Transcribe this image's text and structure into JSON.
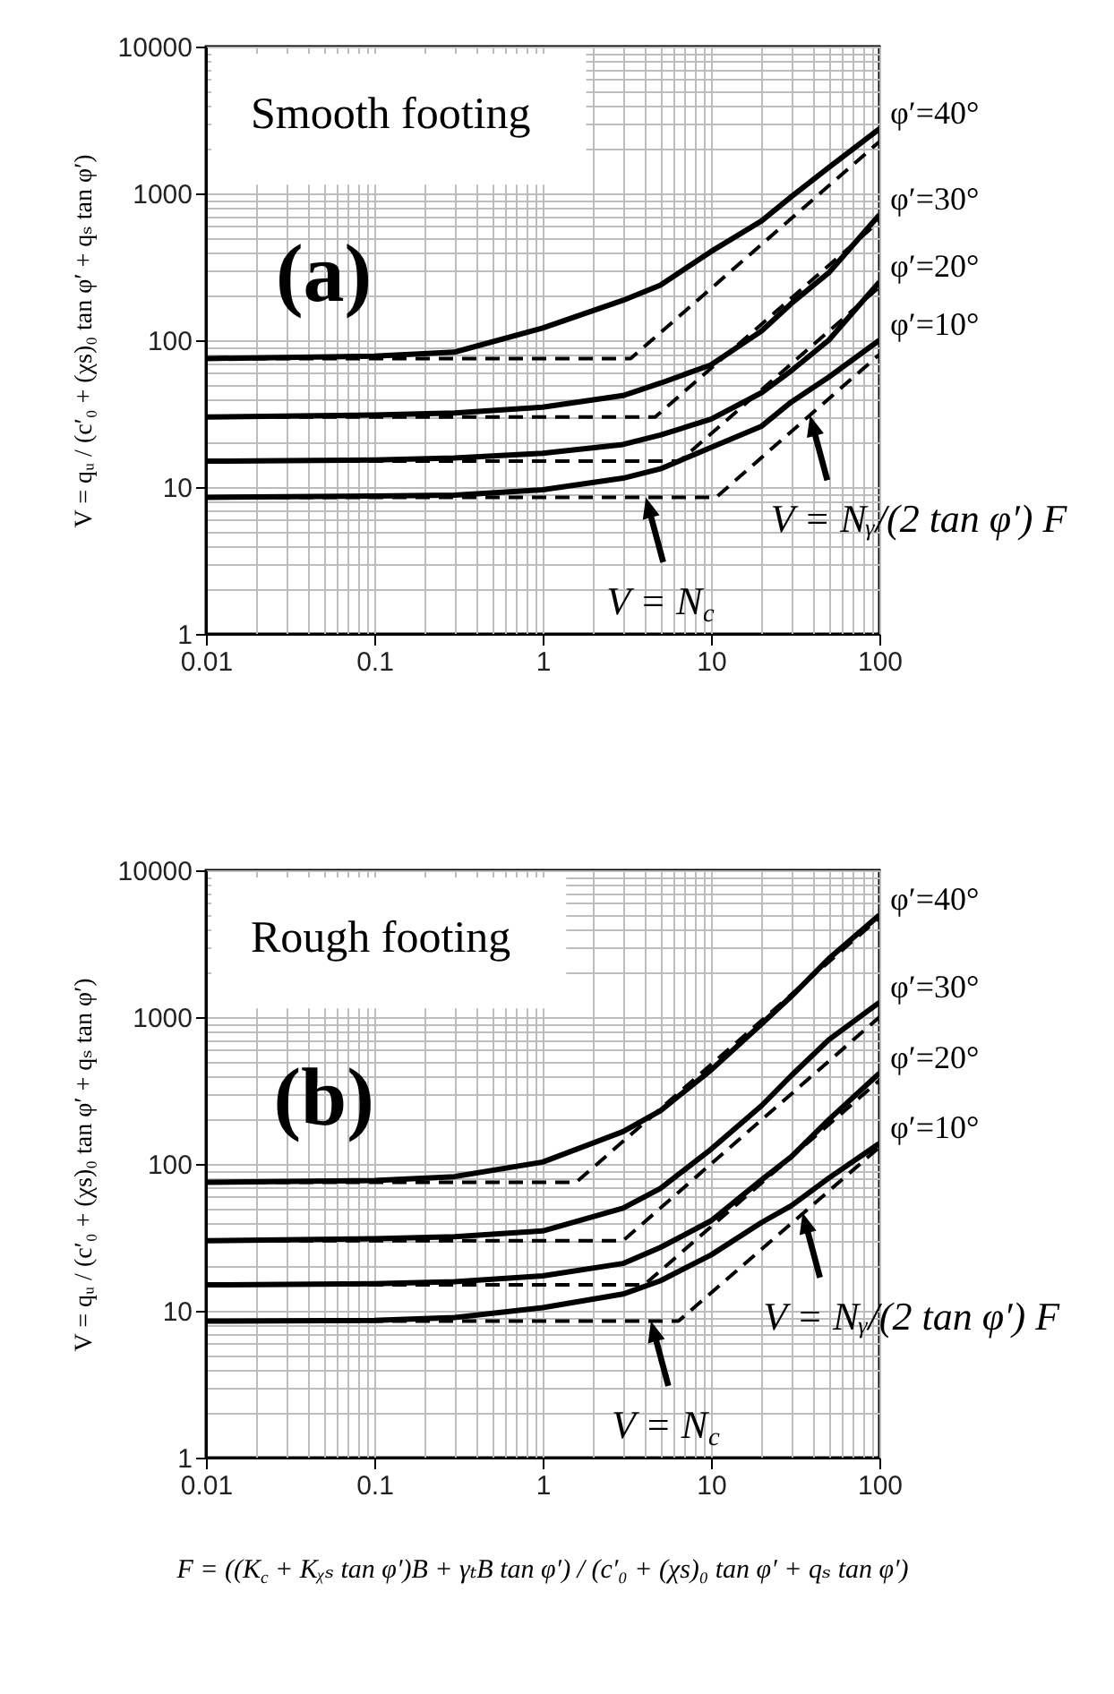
{
  "chart_data": [
    {
      "type": "line",
      "title": "Smooth footing",
      "ylabel": "V = qᵤ / (c′₀ + (χs)₀ tan φ′ + qₛ tan φ′)",
      "x": [
        0.01,
        0.1,
        0.3,
        1,
        3,
        5,
        10,
        20,
        30,
        50,
        100
      ],
      "xlim": [
        0.01,
        100
      ],
      "xticks": [
        0.01,
        0.1,
        1,
        10,
        100
      ],
      "ylim": [
        1,
        10000
      ],
      "yticks": [
        1,
        10,
        100,
        1000,
        10000
      ],
      "log": "xy",
      "grid": true,
      "annotations": [
        "(a)",
        {
          "text": "V = N$_{c}$",
          "x": 4.1,
          "y": 8.5
        },
        {
          "text": "V = Nᵧ/(2 tan φ′) F",
          "x": 38.7,
          "y": 30.7
        }
      ],
      "series": [
        {
          "name": "φ′=40°",
          "color": "#000000",
          "line_style": "solid",
          "values": [
            75,
            78,
            83,
            121,
            187,
            237,
            402,
            650,
            950,
            1500,
            2750
          ]
        },
        {
          "color": "#000000",
          "line_style": "dashed",
          "x": [
            0.01,
            3.33,
            100
          ],
          "values": [
            75,
            75,
            2250
          ]
        },
        {
          "name": "φ′=30°",
          "color": "#000000",
          "line_style": "solid",
          "values": [
            30,
            31,
            32,
            35,
            42,
            51,
            68,
            116,
            178,
            288,
            714
          ]
        },
        {
          "color": "#000000",
          "line_style": "dashed",
          "x": [
            0.01,
            4.66,
            100
          ],
          "values": [
            30,
            30,
            646
          ]
        },
        {
          "name": "φ′=20°",
          "color": "#000000",
          "line_style": "solid",
          "values": [
            15,
            15.3,
            15.8,
            17,
            19.5,
            22.6,
            29,
            44,
            62,
            100,
            249
          ]
        },
        {
          "color": "#000000",
          "line_style": "dashed",
          "x": [
            0.01,
            6.5,
            100
          ],
          "values": [
            15,
            15,
            230
          ]
        },
        {
          "name": "φ′=10°",
          "color": "#000000",
          "line_style": "solid",
          "values": [
            8.5,
            8.7,
            8.8,
            9.6,
            11.5,
            13.3,
            18.6,
            26,
            38,
            56,
            100
          ]
        },
        {
          "color": "#000000",
          "line_style": "dashed",
          "x": [
            0.01,
            10.7,
            100
          ],
          "values": [
            8.5,
            8.5,
            80
          ]
        }
      ]
    },
    {
      "type": "line",
      "title": "Rough footing",
      "ylabel": "V = qᵤ / (c′₀ + (χs)₀ tan φ′ + qₛ tan φ′)",
      "xlabel": "F = ((K$_{c}$ + Kᵪₛ tan φ′)B + γₜB tan φ′) / (c′₀ + (χs)₀ tan φ′ + qₛ tan φ′)",
      "x": [
        0.01,
        0.1,
        0.3,
        1,
        3,
        5,
        10,
        20,
        30,
        50,
        100
      ],
      "xlim": [
        0.01,
        100
      ],
      "xticks": [
        0.01,
        0.1,
        1,
        10,
        100
      ],
      "ylim": [
        1,
        10000
      ],
      "yticks": [
        1,
        10,
        100,
        1000,
        10000
      ],
      "log": "xy",
      "grid": true,
      "annotations": [
        "(b)",
        {
          "text": "V = N$_{c}$",
          "x": 4.4,
          "y": 8.5
        },
        {
          "text": "V = Nᵧ/(2 tan φ′) F",
          "x": 35,
          "y": 46.5
        }
      ],
      "series": [
        {
          "name": "φ′=40°",
          "color": "#000000",
          "line_style": "solid",
          "values": [
            75,
            77,
            82,
            103,
            166,
            230,
            436,
            900,
            1385,
            2500,
            4950
          ]
        },
        {
          "color": "#000000",
          "line_style": "dashed",
          "x": [
            0.01,
            1.58,
            100
          ],
          "values": [
            75,
            75,
            4750
          ]
        },
        {
          "name": "φ′=30°",
          "color": "#000000",
          "line_style": "solid",
          "values": [
            30,
            31,
            32,
            35,
            50,
            68,
            126,
            250,
            400,
            700,
            1260
          ]
        },
        {
          "color": "#000000",
          "line_style": "dashed",
          "x": [
            0.01,
            3,
            100
          ],
          "values": [
            30,
            30,
            1000
          ]
        },
        {
          "name": "φ′=20°",
          "color": "#000000",
          "line_style": "solid",
          "values": [
            15,
            15.3,
            15.8,
            17.3,
            21,
            27,
            41,
            78,
            112,
            200,
            415
          ]
        },
        {
          "color": "#000000",
          "line_style": "dashed",
          "x": [
            0.01,
            4,
            100
          ],
          "values": [
            15,
            15,
            370
          ]
        },
        {
          "name": "φ′=10°",
          "color": "#000000",
          "line_style": "solid",
          "values": [
            8.5,
            8.6,
            9,
            10.5,
            13,
            16,
            24,
            40,
            52,
            80,
            138
          ]
        },
        {
          "color": "#000000",
          "line_style": "dashed",
          "x": [
            0.01,
            6.4,
            100
          ],
          "values": [
            8.5,
            8.5,
            130
          ]
        }
      ]
    }
  ]
}
